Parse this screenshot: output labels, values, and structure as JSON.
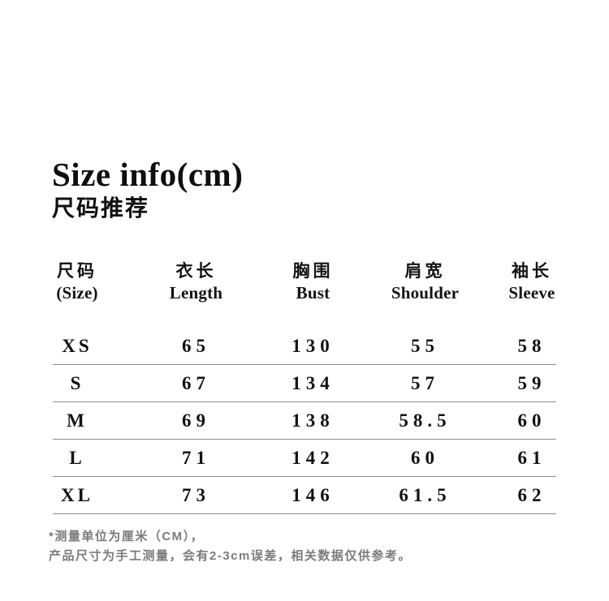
{
  "header": {
    "title": "Size info(cm)",
    "subtitle": "尺码推荐"
  },
  "size_table": {
    "columns": [
      {
        "zh": "尺码",
        "en": "(Size)"
      },
      {
        "zh": "衣长",
        "en": "Length"
      },
      {
        "zh": "胸围",
        "en": "Bust"
      },
      {
        "zh": "肩宽",
        "en": "Shoulder"
      },
      {
        "zh": "袖长",
        "en": "Sleeve"
      }
    ],
    "rows": [
      {
        "size": "XS",
        "length": "65",
        "bust": "130",
        "shoulder": "55",
        "sleeve": "58"
      },
      {
        "size": "S",
        "length": "67",
        "bust": "134",
        "shoulder": "57",
        "sleeve": "59"
      },
      {
        "size": "M",
        "length": "69",
        "bust": "138",
        "shoulder": "58.5",
        "sleeve": "60"
      },
      {
        "size": "L",
        "length": "71",
        "bust": "142",
        "shoulder": "60",
        "sleeve": "61"
      },
      {
        "size": "XL",
        "length": "73",
        "bust": "146",
        "shoulder": "61.5",
        "sleeve": "62"
      }
    ]
  },
  "footnotes": {
    "line1": "*测量单位为厘米（CM），",
    "line2": "产品尺寸为手工测量，会有2-3cm误差，相关数据仅供参考。"
  },
  "colors": {
    "text": "#121212",
    "divider": "#8f8f8f",
    "footnote": "#7b7b7b",
    "background": "#ffffff"
  }
}
